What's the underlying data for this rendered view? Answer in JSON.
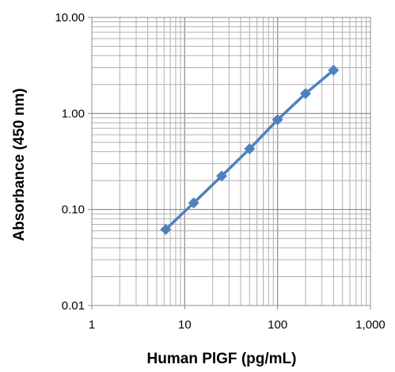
{
  "chart_data": {
    "type": "line",
    "title": "",
    "xlabel": "Human PlGF (pg/mL)",
    "ylabel": "Absorbance (450 nm)",
    "x_scale": "log",
    "y_scale": "log",
    "xlim": [
      1,
      1000
    ],
    "ylim": [
      0.01,
      10
    ],
    "x_tick_labels": [
      "1",
      "10",
      "100",
      "1,000"
    ],
    "y_tick_labels": [
      "0.01",
      "0.10",
      "1.00",
      "10.00"
    ],
    "grid": true,
    "legend": "none",
    "series": [
      {
        "color": "#4f81bd",
        "marker": "diamond",
        "x": [
          6.25,
          12.5,
          25,
          50,
          100,
          200,
          400
        ],
        "y": [
          0.062,
          0.117,
          0.223,
          0.428,
          0.86,
          1.61,
          2.82
        ]
      }
    ]
  }
}
